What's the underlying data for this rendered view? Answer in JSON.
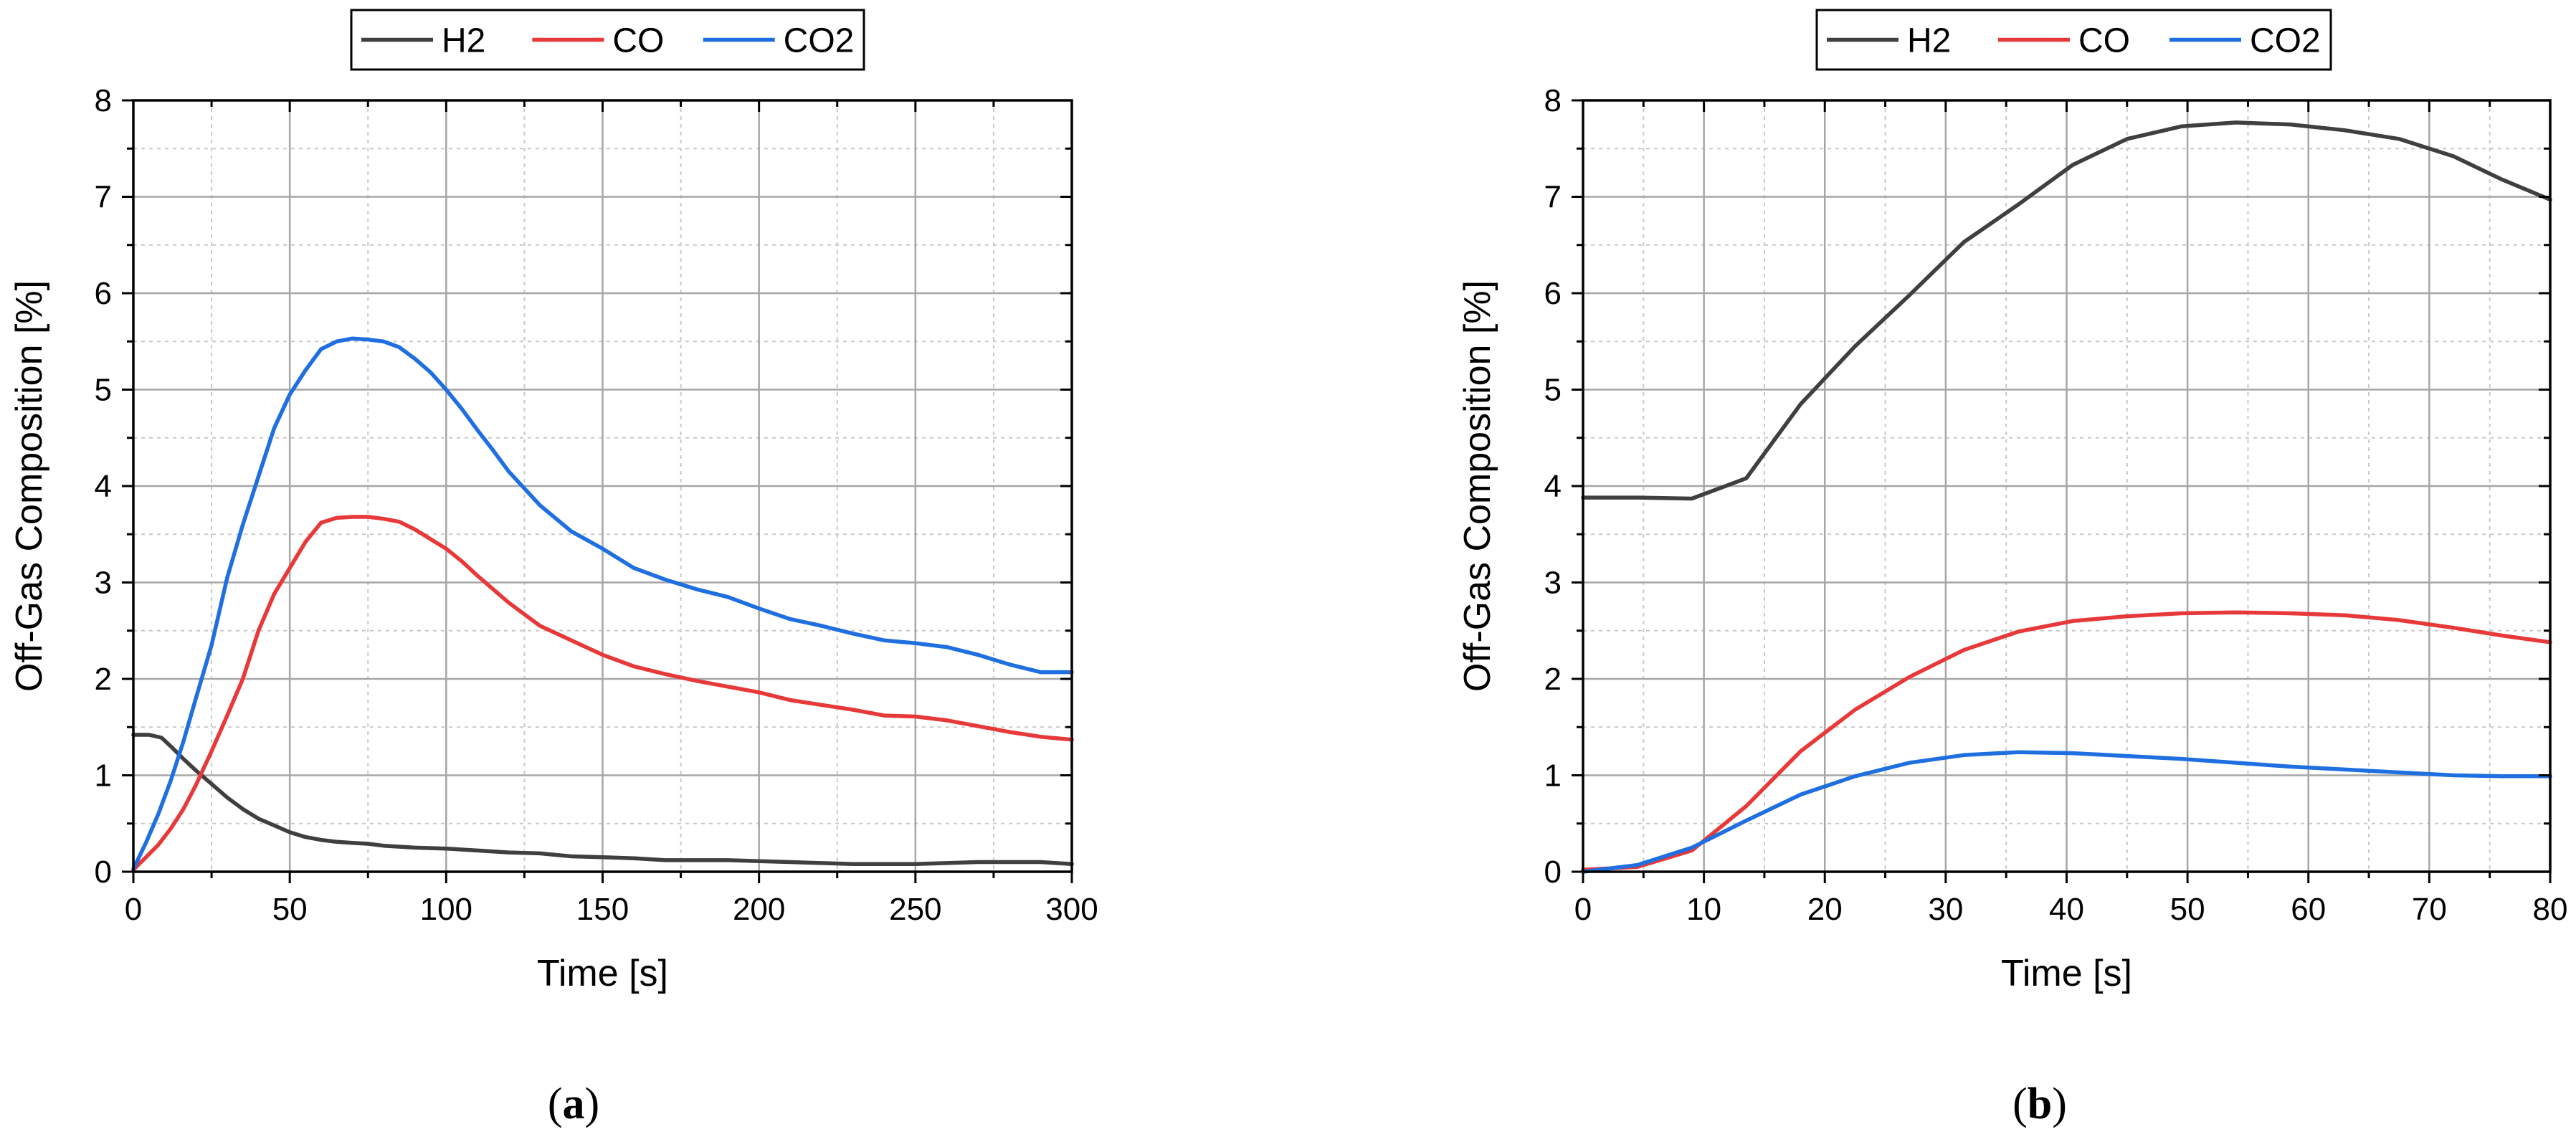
{
  "chart_data": [
    {
      "type": "line",
      "panel_label_parts": [
        "(",
        "a",
        ")"
      ],
      "xlabel": "Time [s]",
      "ylabel": "Off-Gas Composition [%]",
      "xlim": [
        0,
        300
      ],
      "ylim": [
        0,
        8
      ],
      "xticks": [
        0,
        50,
        100,
        150,
        200,
        250,
        300
      ],
      "yticks": [
        0,
        1,
        2,
        3,
        4,
        5,
        6,
        7,
        8
      ],
      "xminor": [
        25,
        75,
        125,
        175,
        225,
        275
      ],
      "yminor": [
        0.5,
        1.5,
        2.5,
        3.5,
        4.5,
        5.5,
        6.5,
        7.5
      ],
      "grid": true,
      "legend_position": "top-center",
      "series": [
        {
          "name": "H2",
          "color": "#3f3f3f",
          "x": [
            0,
            5,
            9,
            12,
            16,
            20,
            25,
            30,
            35,
            40,
            45,
            50,
            55,
            60,
            65,
            70,
            75,
            80,
            90,
            100,
            110,
            120,
            130,
            140,
            150,
            160,
            170,
            180,
            190,
            200,
            210,
            220,
            230,
            240,
            250,
            260,
            270,
            280,
            290,
            300
          ],
          "y": [
            1.42,
            1.42,
            1.39,
            1.3,
            1.17,
            1.05,
            0.91,
            0.77,
            0.65,
            0.55,
            0.48,
            0.41,
            0.36,
            0.33,
            0.31,
            0.3,
            0.29,
            0.27,
            0.25,
            0.24,
            0.22,
            0.2,
            0.19,
            0.16,
            0.15,
            0.14,
            0.12,
            0.12,
            0.12,
            0.11,
            0.1,
            0.09,
            0.08,
            0.08,
            0.08,
            0.09,
            0.1,
            0.1,
            0.1,
            0.08
          ]
        },
        {
          "name": "CO",
          "color": "#e8393a",
          "x": [
            0,
            4,
            8,
            12,
            16,
            20,
            25,
            30,
            35,
            40,
            45,
            50,
            55,
            60,
            65,
            70,
            75,
            80,
            85,
            90,
            95,
            100,
            105,
            110,
            115,
            120,
            130,
            140,
            150,
            160,
            170,
            180,
            190,
            200,
            210,
            220,
            230,
            240,
            250,
            260,
            270,
            280,
            290,
            300
          ],
          "y": [
            0.02,
            0.15,
            0.28,
            0.45,
            0.65,
            0.9,
            1.25,
            1.62,
            2.0,
            2.5,
            2.88,
            3.15,
            3.42,
            3.62,
            3.67,
            3.68,
            3.68,
            3.66,
            3.63,
            3.55,
            3.45,
            3.35,
            3.22,
            3.07,
            2.93,
            2.79,
            2.55,
            2.4,
            2.25,
            2.13,
            2.05,
            1.98,
            1.92,
            1.86,
            1.78,
            1.73,
            1.68,
            1.62,
            1.61,
            1.57,
            1.51,
            1.45,
            1.4,
            1.37
          ]
        },
        {
          "name": "CO2",
          "color": "#1f6fe0",
          "x": [
            0,
            4,
            8,
            12,
            16,
            20,
            25,
            30,
            35,
            40,
            45,
            50,
            55,
            60,
            65,
            70,
            75,
            80,
            85,
            90,
            95,
            100,
            105,
            110,
            115,
            120,
            130,
            140,
            150,
            160,
            170,
            180,
            190,
            200,
            210,
            220,
            230,
            240,
            250,
            260,
            270,
            280,
            290,
            300
          ],
          "y": [
            0.03,
            0.3,
            0.6,
            0.95,
            1.35,
            1.8,
            2.35,
            3.05,
            3.6,
            4.1,
            4.6,
            4.95,
            5.2,
            5.42,
            5.5,
            5.53,
            5.52,
            5.5,
            5.44,
            5.32,
            5.18,
            5.0,
            4.8,
            4.58,
            4.37,
            4.15,
            3.8,
            3.53,
            3.35,
            3.15,
            3.03,
            2.93,
            2.85,
            2.73,
            2.62,
            2.55,
            2.47,
            2.4,
            2.37,
            2.33,
            2.25,
            2.15,
            2.07,
            2.07
          ]
        }
      ]
    },
    {
      "type": "line",
      "panel_label_parts": [
        "(",
        "b",
        ")"
      ],
      "xlabel": "Time [s]",
      "ylabel": "Off-Gas Composition [%]",
      "xlim": [
        0,
        80
      ],
      "ylim": [
        0,
        8
      ],
      "xticks": [
        0,
        10,
        20,
        30,
        40,
        50,
        60,
        70,
        80
      ],
      "yticks": [
        0,
        1,
        2,
        3,
        4,
        5,
        6,
        7,
        8
      ],
      "xminor": [
        5,
        15,
        25,
        35,
        45,
        55,
        65,
        75
      ],
      "yminor": [
        0.5,
        1.5,
        2.5,
        3.5,
        4.5,
        5.5,
        6.5,
        7.5
      ],
      "grid": true,
      "legend_position": "top-center",
      "series": [
        {
          "name": "H2",
          "color": "#3f3f3f",
          "x": [
            0,
            4.5,
            9,
            13.5,
            18,
            22.5,
            27,
            31.5,
            36,
            40.5,
            45,
            49.5,
            54,
            58.5,
            63,
            67.5,
            72,
            76,
            80
          ],
          "y": [
            3.88,
            3.88,
            3.87,
            4.08,
            4.85,
            5.45,
            5.98,
            6.53,
            6.92,
            7.33,
            7.6,
            7.73,
            7.77,
            7.75,
            7.69,
            7.6,
            7.42,
            7.18,
            6.97
          ]
        },
        {
          "name": "CO",
          "color": "#e8393a",
          "x": [
            0,
            4.5,
            9,
            13.5,
            18,
            22.5,
            27,
            31.5,
            36,
            40.5,
            45,
            49.5,
            54,
            58.5,
            63,
            67.5,
            72,
            76,
            80
          ],
          "y": [
            0.02,
            0.05,
            0.22,
            0.68,
            1.25,
            1.68,
            2.02,
            2.3,
            2.49,
            2.6,
            2.65,
            2.68,
            2.69,
            2.68,
            2.66,
            2.61,
            2.53,
            2.45,
            2.38
          ]
        },
        {
          "name": "CO2",
          "color": "#1f6fe0",
          "x": [
            0,
            4.5,
            9,
            13.5,
            18,
            22.5,
            27,
            31.5,
            36,
            40.5,
            45,
            49.5,
            54,
            58.5,
            63,
            67.5,
            72,
            76,
            80
          ],
          "y": [
            0.0,
            0.07,
            0.25,
            0.53,
            0.8,
            0.99,
            1.13,
            1.21,
            1.24,
            1.23,
            1.2,
            1.17,
            1.13,
            1.09,
            1.06,
            1.03,
            1.0,
            0.99,
            0.99
          ]
        }
      ]
    }
  ]
}
